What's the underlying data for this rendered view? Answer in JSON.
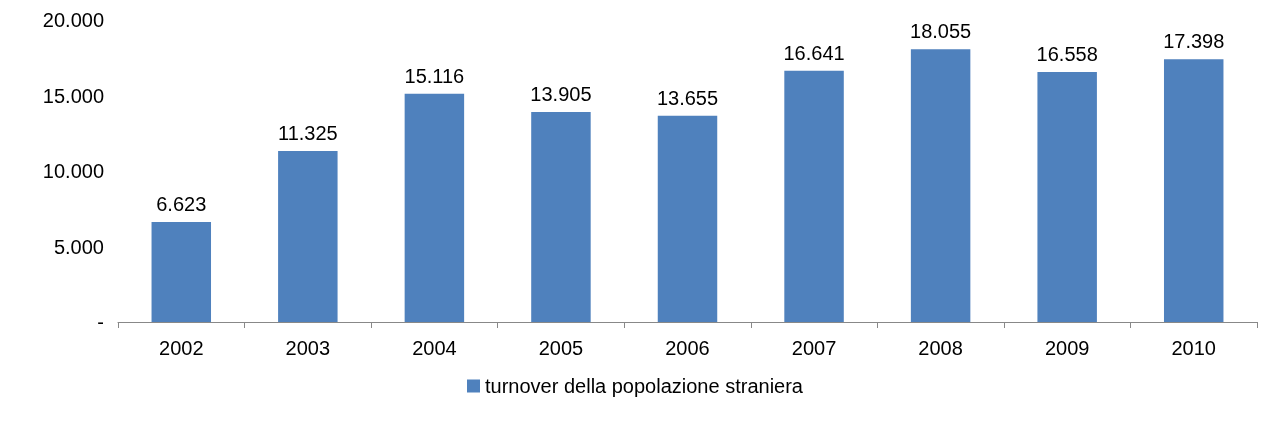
{
  "chart_data": {
    "type": "bar",
    "categories": [
      "2002",
      "2003",
      "2004",
      "2005",
      "2006",
      "2007",
      "2008",
      "2009",
      "2010"
    ],
    "series": [
      {
        "name": "turnover della popolazione straniera",
        "color": "#4f81bd",
        "values": [
          6623,
          11325,
          15116,
          13905,
          13655,
          16641,
          18055,
          16558,
          17398
        ],
        "value_labels": [
          "6.623",
          "11.325",
          "15.116",
          "13.905",
          "13.655",
          "16.641",
          "18.055",
          "16.558",
          "17.398"
        ]
      }
    ],
    "ylim": [
      0,
      20000
    ],
    "yticks": [
      {
        "value": 0,
        "label": "-"
      },
      {
        "value": 5000,
        "label": "5.000"
      },
      {
        "value": 10000,
        "label": "10.000"
      },
      {
        "value": 15000,
        "label": "15.000"
      },
      {
        "value": 20000,
        "label": "20.000"
      }
    ],
    "grid": false,
    "legend": "bottom"
  }
}
